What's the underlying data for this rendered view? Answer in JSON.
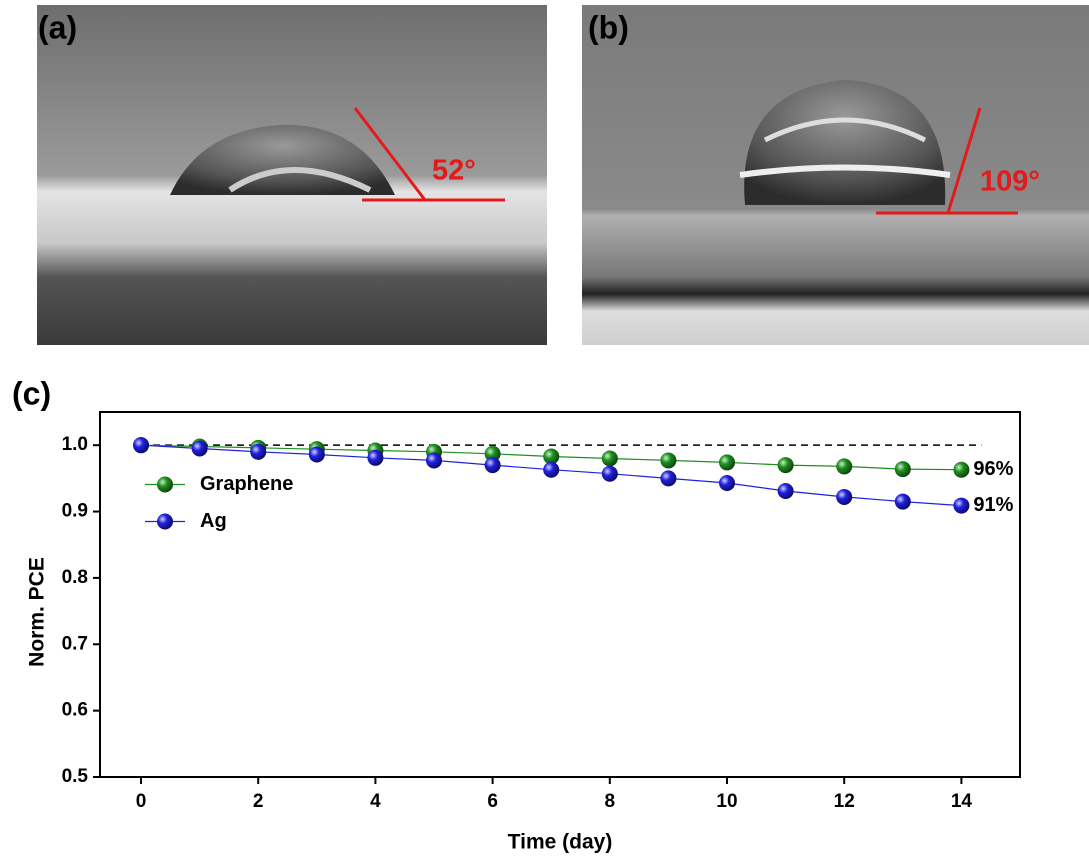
{
  "panels": {
    "a": {
      "label": "(a)",
      "angle": "52°"
    },
    "b": {
      "label": "(b)",
      "angle": "109°"
    }
  },
  "chart_data": {
    "type": "line",
    "panel_label": "(c)",
    "x_label": "Time (day)",
    "y_label": "Norm. PCE",
    "x": [
      0,
      1,
      2,
      3,
      4,
      5,
      6,
      7,
      8,
      9,
      10,
      11,
      12,
      13,
      14
    ],
    "series": [
      {
        "name": "Graphene",
        "color": "#1f8f1f",
        "end_label": "96%",
        "values": [
          1.0,
          0.998,
          0.996,
          0.994,
          0.992,
          0.99,
          0.987,
          0.983,
          0.98,
          0.977,
          0.974,
          0.97,
          0.968,
          0.964,
          0.963
        ]
      },
      {
        "name": "Ag",
        "color": "#2020e0",
        "end_label": "91%",
        "values": [
          1.0,
          0.995,
          0.99,
          0.986,
          0.981,
          0.977,
          0.97,
          0.963,
          0.957,
          0.95,
          0.943,
          0.931,
          0.922,
          0.915,
          0.909
        ]
      }
    ],
    "reference_line": 1.0,
    "xlim": [
      -0.7,
      15
    ],
    "ylim": [
      0.5,
      1.05
    ],
    "xticks": [
      0,
      2,
      4,
      6,
      8,
      10,
      12,
      14
    ],
    "yticks": [
      0.5,
      0.6,
      0.7,
      0.8,
      0.9,
      {
        "value": 1,
        "label": "1.0"
      }
    ],
    "legend": "center left"
  }
}
